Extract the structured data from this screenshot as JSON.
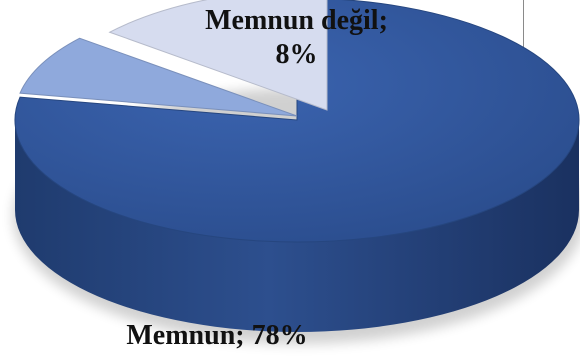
{
  "chart_data": {
    "type": "pie",
    "style": "3d-exploded",
    "slices": [
      {
        "label": "Memnun",
        "value": 78,
        "value_text": "78%",
        "color": "#2f5597"
      },
      {
        "label": "Memnun değil",
        "value": 8,
        "value_text": "8%",
        "color": "#8fa9dc"
      },
      {
        "label": "",
        "value": 14,
        "value_text": "",
        "color": "#d6dcef"
      }
    ],
    "data_labels": [
      {
        "line1": "Memnun değil;",
        "line2": "8%"
      },
      {
        "line1": "Memnun; 78%"
      }
    ]
  }
}
